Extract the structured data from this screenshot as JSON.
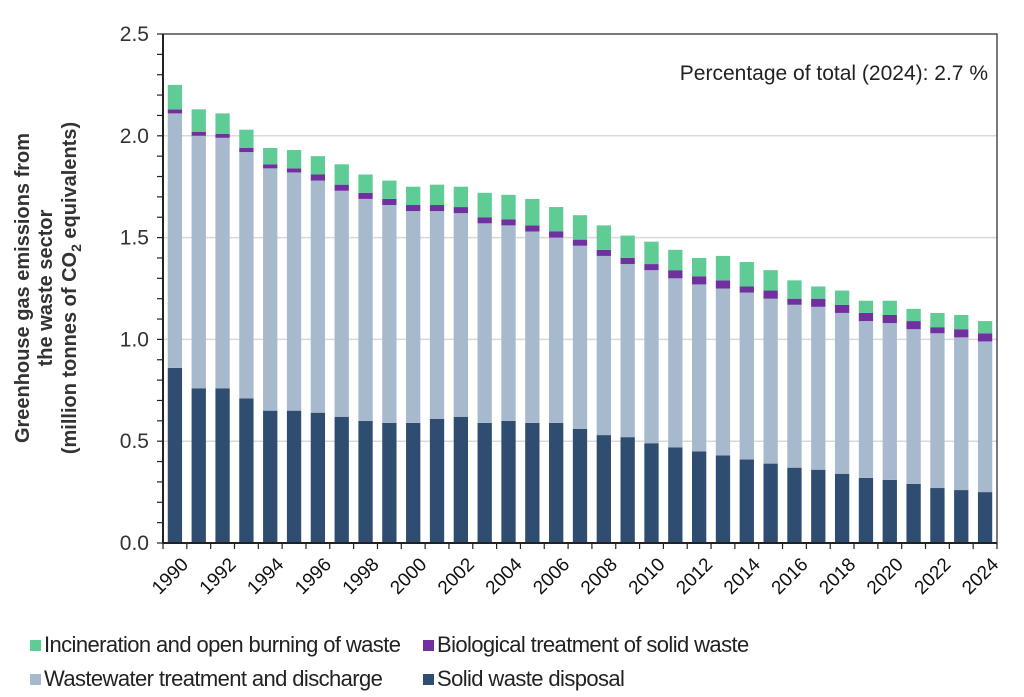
{
  "chart_data": {
    "type": "bar",
    "stacked": true,
    "title": "",
    "annotation": "Percentage of total (2024):  2.7 %",
    "xlabel": "",
    "ylabel_lines": [
      "Greenhouse gas emissions from",
      "the waste sector",
      "(million tonnes of CO",
      "2",
      " equivalents)"
    ],
    "ylim": [
      0,
      2.5
    ],
    "yticks": [
      "0.0",
      "0.5",
      "1.0",
      "1.5",
      "2.0",
      "2.5"
    ],
    "ytick_values": [
      0,
      0.5,
      1.0,
      1.5,
      2.0,
      2.5
    ],
    "grid": true,
    "legend_position": "bottom",
    "categories": [
      "1990",
      "1991",
      "1992",
      "1993",
      "1994",
      "1995",
      "1996",
      "1997",
      "1998",
      "1999",
      "2000",
      "2001",
      "2002",
      "2003",
      "2004",
      "2005",
      "2006",
      "2007",
      "2008",
      "2009",
      "2010",
      "2011",
      "2012",
      "2013",
      "2014",
      "2015",
      "2016",
      "2017",
      "2018",
      "2019",
      "2020",
      "2021",
      "2022",
      "2023",
      "2024"
    ],
    "xtick_labels_shown": [
      "1990",
      "1992",
      "1994",
      "1996",
      "1998",
      "2000",
      "2002",
      "2004",
      "2006",
      "2008",
      "2010",
      "2012",
      "2014",
      "2016",
      "2018",
      "2020",
      "2022",
      "2024"
    ],
    "series": [
      {
        "name": "Solid waste disposal",
        "color": "#2f4d70",
        "values": [
          0.86,
          0.76,
          0.76,
          0.71,
          0.65,
          0.65,
          0.64,
          0.62,
          0.6,
          0.59,
          0.59,
          0.61,
          0.62,
          0.59,
          0.6,
          0.59,
          0.59,
          0.56,
          0.53,
          0.52,
          0.49,
          0.47,
          0.45,
          0.43,
          0.41,
          0.39,
          0.37,
          0.36,
          0.34,
          0.32,
          0.31,
          0.29,
          0.27,
          0.26,
          0.25
        ]
      },
      {
        "name": "Wastewater treatment and discharge",
        "color": "#a7b9cc",
        "values": [
          1.25,
          1.24,
          1.23,
          1.21,
          1.19,
          1.17,
          1.14,
          1.11,
          1.09,
          1.07,
          1.04,
          1.02,
          1.0,
          0.98,
          0.96,
          0.94,
          0.91,
          0.9,
          0.88,
          0.85,
          0.85,
          0.83,
          0.82,
          0.82,
          0.82,
          0.81,
          0.8,
          0.8,
          0.79,
          0.77,
          0.77,
          0.76,
          0.76,
          0.75,
          0.74
        ]
      },
      {
        "name": "Biological treatment of solid waste",
        "color": "#7030a0",
        "values": [
          0.02,
          0.02,
          0.02,
          0.02,
          0.02,
          0.02,
          0.03,
          0.03,
          0.03,
          0.03,
          0.03,
          0.03,
          0.03,
          0.03,
          0.03,
          0.03,
          0.03,
          0.03,
          0.03,
          0.03,
          0.03,
          0.04,
          0.04,
          0.04,
          0.03,
          0.04,
          0.03,
          0.04,
          0.04,
          0.04,
          0.04,
          0.04,
          0.03,
          0.04,
          0.04
        ]
      },
      {
        "name": "Incineration and open burning of waste",
        "color": "#5ecc94",
        "values": [
          0.12,
          0.11,
          0.1,
          0.09,
          0.08,
          0.09,
          0.09,
          0.1,
          0.09,
          0.09,
          0.09,
          0.1,
          0.1,
          0.12,
          0.12,
          0.13,
          0.12,
          0.12,
          0.12,
          0.11,
          0.11,
          0.1,
          0.09,
          0.12,
          0.12,
          0.1,
          0.09,
          0.06,
          0.07,
          0.06,
          0.07,
          0.06,
          0.07,
          0.07,
          0.06
        ]
      }
    ],
    "legend_order": [
      [
        "Incineration and open burning of waste",
        "Biological treatment of solid waste"
      ],
      [
        "Wastewater treatment and discharge",
        "Solid waste disposal"
      ]
    ]
  },
  "legend": {
    "items": [
      {
        "label": "Incineration and open burning of waste",
        "color": "#5ecc94"
      },
      {
        "label": "Biological treatment of solid waste",
        "color": "#7030a0"
      },
      {
        "label": "Wastewater treatment and discharge",
        "color": "#a7b9cc"
      },
      {
        "label": "Solid waste disposal",
        "color": "#2f4d70"
      }
    ]
  },
  "colors": {
    "gridline": "#d9d9d9",
    "axis": "#222222"
  }
}
